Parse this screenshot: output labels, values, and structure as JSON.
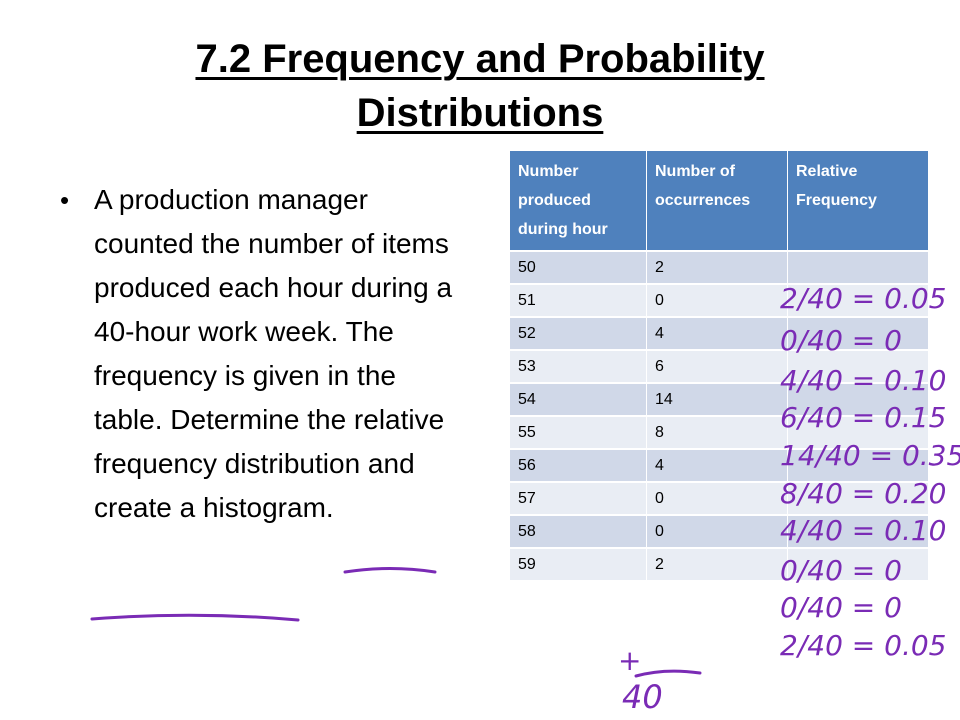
{
  "slide": {
    "title_line1": "7.2 Frequency and Probability",
    "title_line2": "Distributions",
    "bullet_marker": "•",
    "bullet_text": "A production manager counted the number of items produced each hour during a 40-hour work week. The frequency is given in the table. Determine the relative frequency distribution and create a histogram."
  },
  "table": {
    "headers": [
      "Number produced during hour",
      "Number of occurrences",
      "Relative Frequency"
    ],
    "rows": [
      {
        "number": "50",
        "occurrences": "2"
      },
      {
        "number": "51",
        "occurrences": "0"
      },
      {
        "number": "52",
        "occurrences": "4"
      },
      {
        "number": "53",
        "occurrences": "6"
      },
      {
        "number": "54",
        "occurrences": "14"
      },
      {
        "number": "55",
        "occurrences": "8"
      },
      {
        "number": "56",
        "occurrences": "4"
      },
      {
        "number": "57",
        "occurrences": "0"
      },
      {
        "number": "58",
        "occurrences": "0"
      },
      {
        "number": "59",
        "occurrences": "2"
      }
    ]
  },
  "handwriting": {
    "ink_color": "#7A2BB5",
    "relative_frequency": [
      "2/40 = 0.05",
      "0/40 = 0",
      "4/40 = 0.10",
      "6/40 = 0.15",
      "14/40 = 0.35",
      "8/40 = 0.20",
      "4/40 = 0.10",
      "0/40 = 0",
      "0/40 = 0",
      "2/40 = 0.05"
    ],
    "sum_plus": "+",
    "sum_total": "40"
  }
}
